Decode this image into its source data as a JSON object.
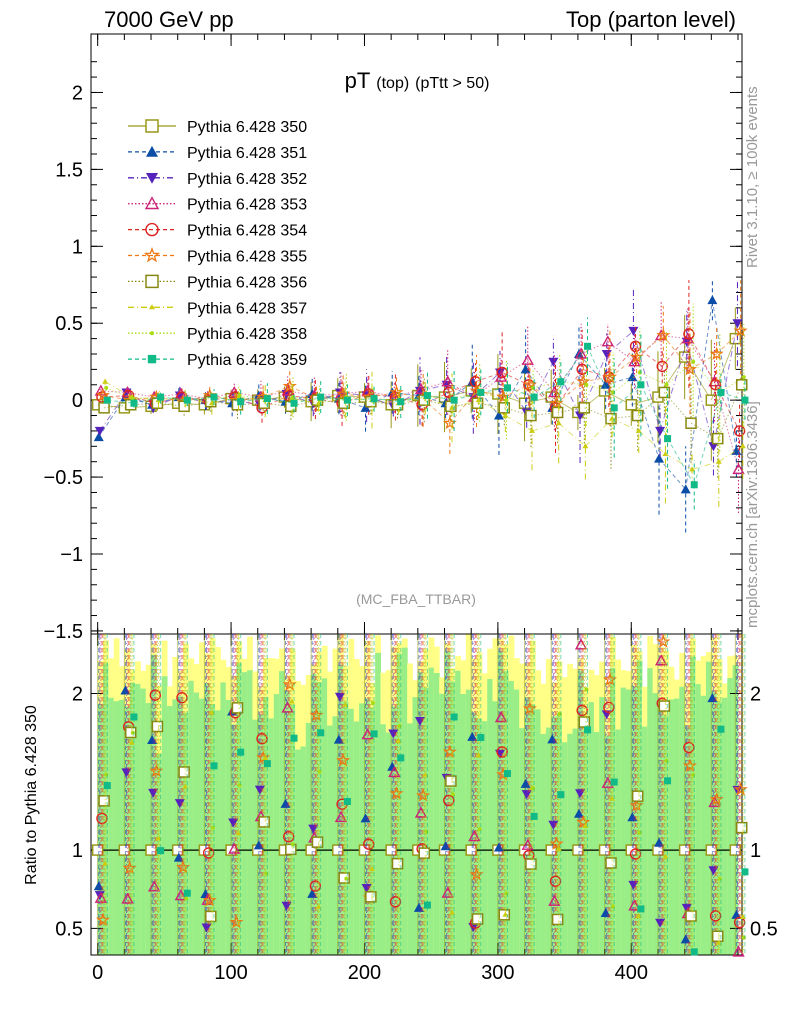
{
  "header": {
    "left": "7000 GeV pp",
    "right": "Top (parton level)"
  },
  "side_labels": {
    "rivet": "Rivet 3.1.10, ≥ 100k events",
    "mcplots": "mcplots.cern.ch [arXiv:1306.3436]"
  },
  "plot": {
    "title_main": "pT",
    "title_sub1": "(top)",
    "title_sub2": "(pTtt > 50)",
    "analysis": "(MC_FBA_TTBAR)",
    "ratio_ylabel": "Ratio to Pythia 6.428 350"
  },
  "legend": [
    {
      "name": "Pythia 6.428 350",
      "color": "#99991a",
      "marker": "square-open",
      "dash": "solid"
    },
    {
      "name": "Pythia 6.428 351",
      "color": "#0a4da6",
      "marker": "triangle-up",
      "dash": "dashed"
    },
    {
      "name": "Pythia 6.428 352",
      "color": "#5522bb",
      "marker": "triangle-down",
      "dash": "dashdot"
    },
    {
      "name": "Pythia 6.428 353",
      "color": "#cc2277",
      "marker": "triangle-open",
      "dash": "dotted"
    },
    {
      "name": "Pythia 6.428 354",
      "color": "#dd2222",
      "marker": "circle-open",
      "dash": "dashed"
    },
    {
      "name": "Pythia 6.428 355",
      "color": "#ee7711",
      "marker": "star-open",
      "dash": "dashed"
    },
    {
      "name": "Pythia 6.428 356",
      "color": "#888811",
      "marker": "square-open",
      "dash": "dotted"
    },
    {
      "name": "Pythia 6.428 357",
      "color": "#cccc11",
      "marker": "tri-small",
      "dash": "dashdot"
    },
    {
      "name": "Pythia 6.428 358",
      "color": "#aadd11",
      "marker": "dot-small",
      "dash": "dotted"
    },
    {
      "name": "Pythia 6.428 359",
      "color": "#11bb88",
      "marker": "square-filled",
      "dash": "dashed"
    }
  ],
  "chart_data": {
    "type": "scatter",
    "x_ticks": [
      0,
      100,
      200,
      300,
      400
    ],
    "xlim": [
      -5,
      483
    ],
    "main": {
      "ylim": [
        -1.52,
        2.38
      ],
      "y_ticks": [
        -1.5,
        -1,
        -0.5,
        0,
        0.5,
        1,
        1.5,
        2
      ],
      "y_tick_labels": [
        "−1.5",
        "−1",
        "−0.5",
        "0",
        "0.5",
        "1",
        "1.5",
        "2"
      ]
    },
    "ratio": {
      "ylim": [
        0.33,
        2.38
      ],
      "reference_line": 1,
      "y_ticks": [
        0.5,
        1,
        2
      ],
      "y_tick_labels": [
        "0.5",
        "1",
        "2"
      ]
    },
    "series": [
      {
        "name": "Pythia 6.428 350",
        "points": [
          [
            0,
            -0.03
          ],
          [
            20,
            -0.05
          ],
          [
            40,
            -0.04
          ],
          [
            60,
            -0.02
          ],
          [
            80,
            -0.03
          ],
          [
            100,
            0.01
          ],
          [
            120,
            0.0
          ],
          [
            140,
            0.02
          ],
          [
            160,
            -0.01
          ],
          [
            180,
            0.03
          ],
          [
            200,
            0.02
          ],
          [
            220,
            -0.03
          ],
          [
            240,
            0.03
          ],
          [
            260,
            0.02
          ],
          [
            280,
            0.06
          ],
          [
            300,
            0.04
          ],
          [
            320,
            -0.02
          ],
          [
            340,
            0.02
          ],
          [
            360,
            -0.08
          ],
          [
            380,
            0.06
          ],
          [
            400,
            -0.03
          ],
          [
            420,
            0.02
          ],
          [
            440,
            0.28
          ],
          [
            460,
            0.0
          ],
          [
            478,
            0.4
          ]
        ]
      },
      {
        "name": "Pythia 6.428 351",
        "points": [
          [
            0,
            -0.24
          ],
          [
            20,
            0.02
          ],
          [
            40,
            -0.03
          ],
          [
            60,
            0.02
          ],
          [
            80,
            0.0
          ],
          [
            100,
            -0.02
          ],
          [
            120,
            0.03
          ],
          [
            140,
            -0.01
          ],
          [
            160,
            0.04
          ],
          [
            180,
            0.01
          ],
          [
            200,
            -0.05
          ],
          [
            220,
            0.05
          ],
          [
            240,
            0.03
          ],
          [
            260,
            -0.02
          ],
          [
            280,
            0.12
          ],
          [
            300,
            -0.1
          ],
          [
            320,
            0.2
          ],
          [
            340,
            -0.05
          ],
          [
            360,
            0.3
          ],
          [
            380,
            0.1
          ],
          [
            400,
            0.15
          ],
          [
            420,
            -0.38
          ],
          [
            440,
            -0.58
          ],
          [
            460,
            0.65
          ],
          [
            478,
            -0.33
          ]
        ]
      },
      {
        "name": "Pythia 6.428 352",
        "points": [
          [
            0,
            -0.2
          ],
          [
            20,
            0.05
          ],
          [
            40,
            -0.05
          ],
          [
            60,
            0.03
          ],
          [
            80,
            -0.02
          ],
          [
            100,
            0.0
          ],
          [
            120,
            -0.03
          ],
          [
            140,
            0.04
          ],
          [
            160,
            -0.02
          ],
          [
            180,
            0.05
          ],
          [
            200,
            0.03
          ],
          [
            220,
            -0.04
          ],
          [
            240,
            0.06
          ],
          [
            260,
            0.1
          ],
          [
            280,
            0.02
          ],
          [
            300,
            0.18
          ],
          [
            320,
            -0.08
          ],
          [
            340,
            0.25
          ],
          [
            360,
            -0.1
          ],
          [
            380,
            0.3
          ],
          [
            400,
            0.45
          ],
          [
            420,
            -0.2
          ],
          [
            440,
            0.38
          ],
          [
            460,
            -0.3
          ],
          [
            478,
            0.5
          ]
        ]
      },
      {
        "name": "Pythia 6.428 353",
        "points": [
          [
            0,
            0.06
          ],
          [
            20,
            0.05
          ],
          [
            40,
            0.02
          ],
          [
            60,
            0.04
          ],
          [
            80,
            0.01
          ],
          [
            100,
            0.05
          ],
          [
            120,
            0.02
          ],
          [
            140,
            0.06
          ],
          [
            160,
            0.03
          ],
          [
            180,
            0.04
          ],
          [
            200,
            0.06
          ],
          [
            220,
            0.02
          ],
          [
            240,
            0.07
          ],
          [
            260,
            0.12
          ],
          [
            280,
            0.02
          ],
          [
            300,
            0.15
          ],
          [
            320,
            0.26
          ],
          [
            340,
            0.05
          ],
          [
            360,
            0.3
          ],
          [
            380,
            0.38
          ],
          [
            400,
            0.25
          ],
          [
            420,
            0.42
          ],
          [
            440,
            0.4
          ],
          [
            460,
            0.12
          ],
          [
            478,
            -0.45
          ]
        ]
      },
      {
        "name": "Pythia 6.428 354",
        "points": [
          [
            0,
            0.02
          ],
          [
            20,
            0.03
          ],
          [
            40,
            -0.02
          ],
          [
            60,
            0.02
          ],
          [
            80,
            0.0
          ],
          [
            100,
            0.02
          ],
          [
            120,
            -0.05
          ],
          [
            140,
            0.03
          ],
          [
            160,
            0.01
          ],
          [
            180,
            -0.02
          ],
          [
            200,
            0.04
          ],
          [
            220,
            0.02
          ],
          [
            240,
            -0.03
          ],
          [
            260,
            0.05
          ],
          [
            280,
            0.12
          ],
          [
            300,
            0.18
          ],
          [
            320,
            0.1
          ],
          [
            340,
            -0.05
          ],
          [
            360,
            0.2
          ],
          [
            380,
            0.15
          ],
          [
            400,
            0.35
          ],
          [
            420,
            0.22
          ],
          [
            440,
            0.43
          ],
          [
            460,
            0.1
          ],
          [
            478,
            -0.2
          ]
        ]
      },
      {
        "name": "Pythia 6.428 355",
        "points": [
          [
            0,
            0.03
          ],
          [
            20,
            0.0
          ],
          [
            40,
            0.02
          ],
          [
            60,
            -0.01
          ],
          [
            80,
            0.03
          ],
          [
            100,
            0.0
          ],
          [
            120,
            0.02
          ],
          [
            140,
            0.09
          ],
          [
            160,
            0.01
          ],
          [
            180,
            0.04
          ],
          [
            200,
            0.02
          ],
          [
            220,
            0.05
          ],
          [
            240,
            0.01
          ],
          [
            260,
            -0.15
          ],
          [
            280,
            0.06
          ],
          [
            300,
            0.02
          ],
          [
            320,
            0.1
          ],
          [
            340,
            -0.02
          ],
          [
            360,
            0.12
          ],
          [
            380,
            0.15
          ],
          [
            400,
            0.28
          ],
          [
            420,
            0.42
          ],
          [
            440,
            0.2
          ],
          [
            460,
            0.3
          ],
          [
            478,
            0.45
          ]
        ]
      },
      {
        "name": "Pythia 6.428 356",
        "points": [
          [
            0,
            -0.05
          ],
          [
            20,
            -0.03
          ],
          [
            40,
            -0.02
          ],
          [
            60,
            -0.04
          ],
          [
            80,
            -0.01
          ],
          [
            100,
            -0.03
          ],
          [
            120,
            -0.02
          ],
          [
            140,
            -0.04
          ],
          [
            160,
            0.0
          ],
          [
            180,
            -0.02
          ],
          [
            200,
            -0.01
          ],
          [
            220,
            -0.03
          ],
          [
            240,
            0.0
          ],
          [
            260,
            -0.04
          ],
          [
            280,
            -0.02
          ],
          [
            300,
            -0.05
          ],
          [
            320,
            -0.1
          ],
          [
            340,
            -0.08
          ],
          [
            360,
            -0.05
          ],
          [
            380,
            -0.12
          ],
          [
            400,
            -0.1
          ],
          [
            420,
            0.05
          ],
          [
            440,
            -0.15
          ],
          [
            460,
            -0.25
          ],
          [
            478,
            0.1
          ]
        ]
      },
      {
        "name": "Pythia 6.428 357",
        "points": [
          [
            0,
            0.12
          ],
          [
            20,
            0.02
          ],
          [
            40,
            0.0
          ],
          [
            60,
            0.01
          ],
          [
            80,
            -0.02
          ],
          [
            100,
            0.02
          ],
          [
            120,
            0.0
          ],
          [
            140,
            0.01
          ],
          [
            160,
            -0.02
          ],
          [
            180,
            0.01
          ],
          [
            200,
            0.0
          ],
          [
            220,
            -0.02
          ],
          [
            240,
            0.02
          ],
          [
            260,
            -0.05
          ],
          [
            280,
            0.0
          ],
          [
            300,
            -0.1
          ],
          [
            320,
            -0.2
          ],
          [
            340,
            -0.15
          ],
          [
            360,
            -0.3
          ],
          [
            380,
            -0.12
          ],
          [
            400,
            -0.2
          ],
          [
            420,
            -0.35
          ],
          [
            440,
            -0.45
          ],
          [
            460,
            -0.4
          ],
          [
            478,
            -0.3
          ]
        ]
      },
      {
        "name": "Pythia 6.428 358",
        "points": [
          [
            0,
            0.08
          ],
          [
            20,
            0.01
          ],
          [
            40,
            0.02
          ],
          [
            60,
            0.0
          ],
          [
            80,
            0.01
          ],
          [
            100,
            0.03
          ],
          [
            120,
            0.01
          ],
          [
            140,
            0.02
          ],
          [
            160,
            0.0
          ],
          [
            180,
            0.02
          ],
          [
            200,
            0.01
          ],
          [
            220,
            0.0
          ],
          [
            240,
            0.02
          ],
          [
            260,
            0.01
          ],
          [
            280,
            0.05
          ],
          [
            300,
            0.0
          ],
          [
            320,
            0.08
          ],
          [
            340,
            0.12
          ],
          [
            360,
            0.1
          ],
          [
            380,
            0.05
          ],
          [
            400,
            0.18
          ],
          [
            420,
            0.1
          ],
          [
            440,
            0.25
          ],
          [
            460,
            0.05
          ],
          [
            478,
            0.15
          ]
        ]
      },
      {
        "name": "Pythia 6.428 359",
        "points": [
          [
            0,
            0.0
          ],
          [
            20,
            -0.02
          ],
          [
            40,
            0.02
          ],
          [
            60,
            0.0
          ],
          [
            80,
            0.02
          ],
          [
            100,
            -0.01
          ],
          [
            120,
            0.01
          ],
          [
            140,
            -0.02
          ],
          [
            160,
            0.02
          ],
          [
            180,
            0.0
          ],
          [
            200,
            0.01
          ],
          [
            220,
            -0.01
          ],
          [
            240,
            0.03
          ],
          [
            260,
            0.0
          ],
          [
            280,
            0.05
          ],
          [
            300,
            0.08
          ],
          [
            320,
            0.02
          ],
          [
            340,
            0.12
          ],
          [
            360,
            0.35
          ],
          [
            380,
            -0.05
          ],
          [
            400,
            0.1
          ],
          [
            420,
            -0.25
          ],
          [
            440,
            -0.55
          ],
          [
            460,
            0.05
          ],
          [
            478,
            0.0
          ]
        ]
      }
    ]
  }
}
